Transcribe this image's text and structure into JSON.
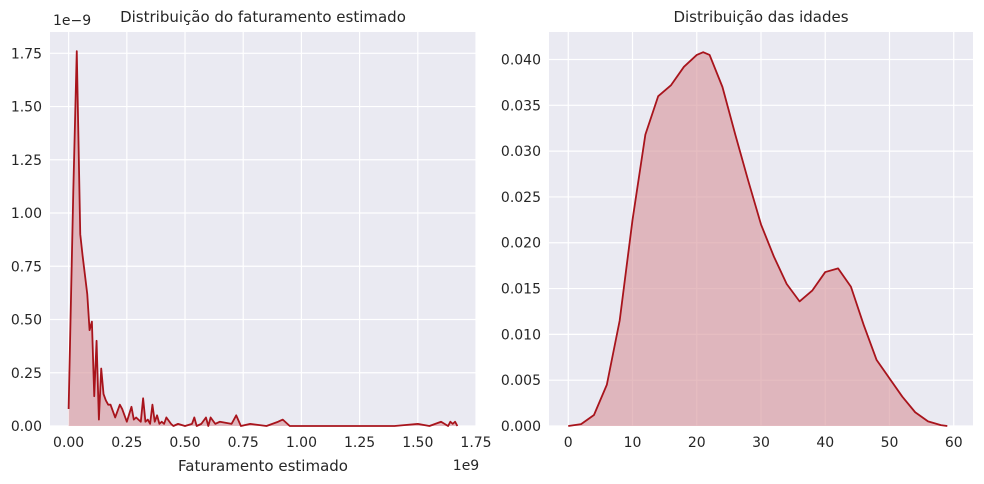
{
  "chart_data": [
    {
      "type": "area",
      "title": "Distribuição do faturamento estimado",
      "xlabel": "Faturamento estimado",
      "ylabel": "",
      "x_offset_label": "1e9",
      "y_offset_label": "1e−9",
      "xlim": [
        -0.08,
        1.75
      ],
      "ylim": [
        0,
        1.85
      ],
      "xticks": [
        0.0,
        0.25,
        0.5,
        0.75,
        1.0,
        1.25,
        1.5,
        1.75
      ],
      "xtick_labels": [
        "0.00",
        "0.25",
        "0.50",
        "0.75",
        "1.00",
        "1.25",
        "1.50",
        "1.75"
      ],
      "yticks": [
        0.0,
        0.25,
        0.5,
        0.75,
        1.0,
        1.25,
        1.5,
        1.75
      ],
      "ytick_labels": [
        "0.00",
        "0.25",
        "0.50",
        "0.75",
        "1.00",
        "1.25",
        "1.50",
        "1.75"
      ],
      "grid": true,
      "color": "#a8141c",
      "fill_color": "#d99aa0",
      "x": [
        0.0,
        0.02,
        0.035,
        0.05,
        0.06,
        0.08,
        0.09,
        0.1,
        0.11,
        0.12,
        0.13,
        0.14,
        0.15,
        0.16,
        0.17,
        0.18,
        0.2,
        0.22,
        0.23,
        0.25,
        0.27,
        0.28,
        0.29,
        0.31,
        0.32,
        0.33,
        0.34,
        0.35,
        0.36,
        0.37,
        0.38,
        0.39,
        0.4,
        0.41,
        0.42,
        0.44,
        0.45,
        0.47,
        0.5,
        0.53,
        0.54,
        0.55,
        0.57,
        0.59,
        0.6,
        0.61,
        0.63,
        0.65,
        0.7,
        0.72,
        0.74,
        0.78,
        0.85,
        0.9,
        0.92,
        0.95,
        1.0,
        1.1,
        1.2,
        1.3,
        1.4,
        1.5,
        1.55,
        1.6,
        1.63,
        1.64,
        1.65,
        1.66,
        1.67
      ],
      "y": [
        0.08,
        1.1,
        1.76,
        0.9,
        0.8,
        0.62,
        0.45,
        0.49,
        0.14,
        0.4,
        0.03,
        0.27,
        0.15,
        0.12,
        0.1,
        0.1,
        0.04,
        0.1,
        0.08,
        0.02,
        0.09,
        0.03,
        0.04,
        0.02,
        0.13,
        0.02,
        0.03,
        0.01,
        0.1,
        0.02,
        0.05,
        0.01,
        0.02,
        0.01,
        0.04,
        0.01,
        0.0,
        0.01,
        0.0,
        0.01,
        0.04,
        0.0,
        0.01,
        0.04,
        0.0,
        0.04,
        0.01,
        0.02,
        0.01,
        0.05,
        0.0,
        0.01,
        0.0,
        0.02,
        0.03,
        0.0,
        0.0,
        0.0,
        0.0,
        0.0,
        0.0,
        0.01,
        0.0,
        0.02,
        0.0,
        0.02,
        0.01,
        0.02,
        0.0
      ]
    },
    {
      "type": "area",
      "title": "Distribuição das idades",
      "xlabel": "",
      "ylabel": "",
      "xlim": [
        -3,
        63
      ],
      "ylim": [
        0,
        0.043
      ],
      "xticks": [
        0,
        10,
        20,
        30,
        40,
        50,
        60
      ],
      "xtick_labels": [
        "0",
        "10",
        "20",
        "30",
        "40",
        "50",
        "60"
      ],
      "yticks": [
        0.0,
        0.005,
        0.01,
        0.015,
        0.02,
        0.025,
        0.03,
        0.035,
        0.04
      ],
      "ytick_labels": [
        "0.000",
        "0.005",
        "0.010",
        "0.015",
        "0.020",
        "0.025",
        "0.030",
        "0.035",
        "0.040"
      ],
      "grid": true,
      "color": "#a8141c",
      "fill_color": "#d99aa0",
      "x": [
        0,
        2,
        4,
        6,
        8,
        10,
        12,
        14,
        16,
        18,
        20,
        21,
        22,
        24,
        26,
        28,
        30,
        32,
        34,
        36,
        38,
        40,
        42,
        44,
        46,
        48,
        50,
        52,
        54,
        56,
        58,
        59
      ],
      "y": [
        0.0,
        0.0002,
        0.0012,
        0.0045,
        0.0115,
        0.0225,
        0.0318,
        0.036,
        0.0372,
        0.0392,
        0.0405,
        0.0408,
        0.0405,
        0.037,
        0.0318,
        0.0268,
        0.022,
        0.0185,
        0.0155,
        0.0136,
        0.0148,
        0.0168,
        0.0172,
        0.0152,
        0.011,
        0.0072,
        0.0052,
        0.0032,
        0.0015,
        0.0005,
        0.0001,
        0.0
      ]
    }
  ]
}
